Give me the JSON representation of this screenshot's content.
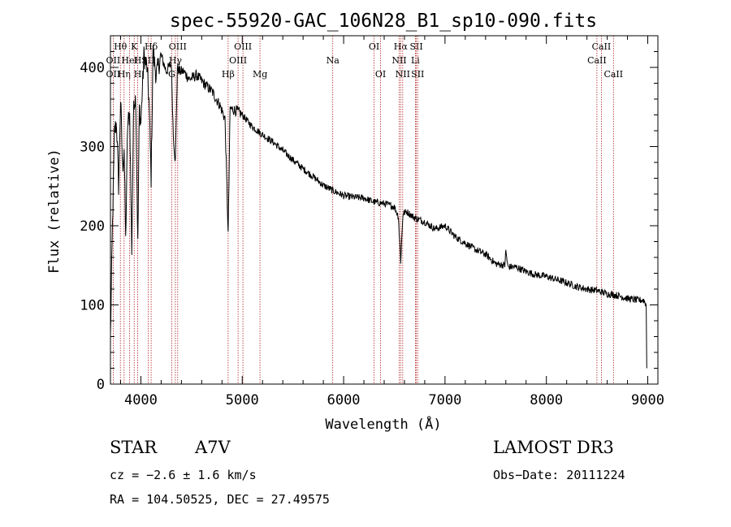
{
  "chart_data": {
    "type": "line",
    "title": "spec-55920-GAC_106N28_B1_sp10-090.fits",
    "xlabel": "Wavelength (Å)",
    "ylabel": "Flux (relative)",
    "xlim": [
      3700,
      9100
    ],
    "ylim": [
      0,
      440
    ],
    "xticks": [
      4000,
      5000,
      6000,
      7000,
      8000,
      9000
    ],
    "yticks": [
      0,
      100,
      200,
      300,
      400
    ],
    "series": [
      {
        "name": "spectrum",
        "x": [
          3700,
          3720,
          3740,
          3760,
          3780,
          3800,
          3820,
          3835,
          3850,
          3870,
          3890,
          3910,
          3930,
          3950,
          3970,
          3985,
          4000,
          4030,
          4060,
          4080,
          4101,
          4120,
          4150,
          4200,
          4250,
          4300,
          4320,
          4340,
          4360,
          4380,
          4420,
          4480,
          4550,
          4620,
          4700,
          4780,
          4830,
          4861,
          4880,
          4950,
          5000,
          5100,
          5200,
          5300,
          5400,
          5500,
          5600,
          5700,
          5800,
          5900,
          6000,
          6100,
          6200,
          6300,
          6400,
          6500,
          6540,
          6563,
          6585,
          6620,
          6700,
          6800,
          6900,
          7000,
          7100,
          7200,
          7300,
          7400,
          7500,
          7590,
          7600,
          7620,
          7700,
          7800,
          7900,
          8000,
          8100,
          8200,
          8300,
          8400,
          8500,
          8600,
          8700,
          8800,
          8900,
          8960,
          8985,
          8990
        ],
        "y": [
          60,
          200,
          320,
          330,
          250,
          360,
          270,
          300,
          180,
          330,
          340,
          170,
          360,
          360,
          175,
          350,
          330,
          415,
          400,
          360,
          260,
          420,
          390,
          415,
          395,
          405,
          315,
          280,
          400,
          395,
          395,
          385,
          390,
          380,
          370,
          352,
          335,
          190,
          348,
          345,
          340,
          325,
          315,
          306,
          295,
          283,
          272,
          262,
          251,
          244,
          238,
          236,
          235,
          230,
          228,
          224,
          212,
          155,
          215,
          218,
          210,
          205,
          196,
          200,
          186,
          178,
          170,
          164,
          152,
          150,
          168,
          148,
          148,
          142,
          138,
          136,
          132,
          128,
          123,
          120,
          118,
          114,
          112,
          108,
          106,
          106,
          100,
          20
        ]
      }
    ],
    "spectral_lines": [
      {
        "name": "Hθ",
        "x": 3798,
        "row": 1
      },
      {
        "name": "OII",
        "x": 3727,
        "row": 2
      },
      {
        "name": "OII",
        "x": 3727,
        "row": 3
      },
      {
        "name": "Hη",
        "x": 3835,
        "row": 3
      },
      {
        "name": "HeI",
        "x": 3889,
        "row": 2
      },
      {
        "name": "K",
        "x": 3934,
        "row": 1
      },
      {
        "name": "H",
        "x": 3968,
        "row": 2
      },
      {
        "name": "H",
        "x": 3968,
        "row": 3
      },
      {
        "name": "Hδ",
        "x": 4101,
        "row": 1
      },
      {
        "name": "SII",
        "x": 4072,
        "row": 2
      },
      {
        "name": "OIII",
        "x": 4363,
        "row": 1
      },
      {
        "name": "Hγ",
        "x": 4340,
        "row": 2
      },
      {
        "name": "G",
        "x": 4304,
        "row": 3
      },
      {
        "name": "OIII",
        "x": 5007,
        "row": 1
      },
      {
        "name": "OIII",
        "x": 4959,
        "row": 2
      },
      {
        "name": "Hβ",
        "x": 4861,
        "row": 3
      },
      {
        "name": "Mg",
        "x": 5175,
        "row": 3
      },
      {
        "name": "Na",
        "x": 5893,
        "row": 2
      },
      {
        "name": "OI",
        "x": 6300,
        "row": 1
      },
      {
        "name": "OI",
        "x": 6364,
        "row": 3
      },
      {
        "name": "Hα",
        "x": 6563,
        "row": 1
      },
      {
        "name": "NII",
        "x": 6548,
        "row": 2
      },
      {
        "name": "NII",
        "x": 6583,
        "row": 3
      },
      {
        "name": "SII",
        "x": 6717,
        "row": 1
      },
      {
        "name": "Li",
        "x": 6708,
        "row": 2
      },
      {
        "name": "SII",
        "x": 6731,
        "row": 3
      },
      {
        "name": "CaII",
        "x": 8542,
        "row": 1
      },
      {
        "name": "CaII",
        "x": 8498,
        "row": 2
      },
      {
        "name": "CaII",
        "x": 8662,
        "row": 3
      }
    ]
  },
  "info": {
    "object_type": "STAR",
    "spectral_class": "A7V",
    "survey": "LAMOST DR3",
    "cz": "cz = −2.6 ± 1.6 km/s",
    "obs_date": "Obs−Date: 20111224",
    "coords": "RA = 104.50525, DEC =  27.49575"
  },
  "colors": {
    "line": "#b22222",
    "spectrum": "#000000"
  }
}
